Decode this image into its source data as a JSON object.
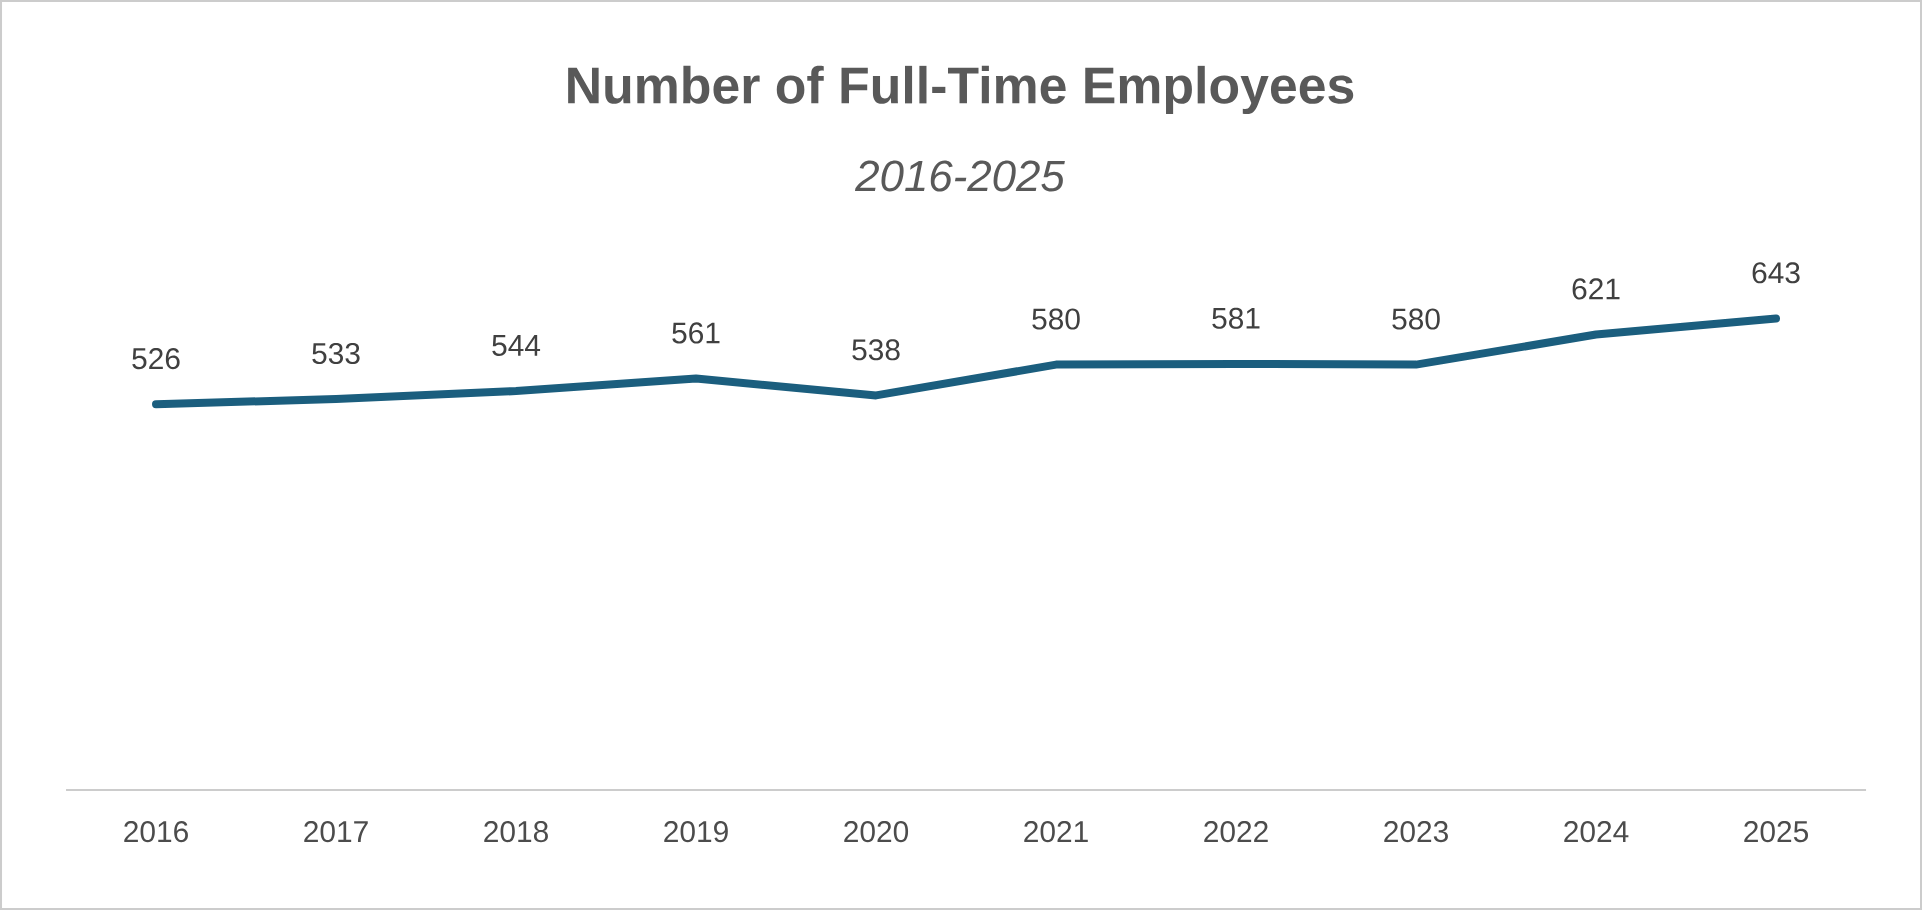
{
  "chart_data": {
    "type": "line",
    "title": "Number of Full-Time Employees",
    "subtitle": "2016-2025",
    "categories": [
      "2016",
      "2017",
      "2018",
      "2019",
      "2020",
      "2021",
      "2022",
      "2023",
      "2024",
      "2025"
    ],
    "series": [
      {
        "color": "#1b5e7e",
        "values": [
          526,
          533,
          544,
          561,
          538,
          580,
          581,
          580,
          621,
          643
        ]
      }
    ],
    "tick_labels": "x",
    "data_labels": true,
    "marker": "none",
    "line_style": "solid"
  }
}
